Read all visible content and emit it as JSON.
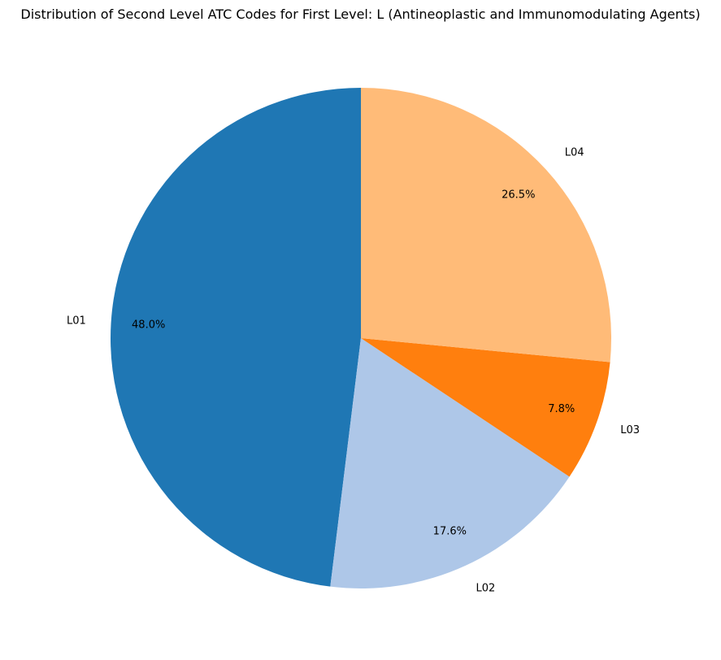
{
  "chart_data": {
    "type": "pie",
    "title": "Distribution of Second Level ATC Codes for First Level: L (Antineoplastic and Immunomodulating Agents)",
    "labels": [
      "L01",
      "L02",
      "L03",
      "L04"
    ],
    "values": [
      48.0,
      17.6,
      7.8,
      26.5
    ],
    "value_labels": [
      "48.0%",
      "17.6%",
      "7.8%",
      "26.5%"
    ],
    "colors": [
      "#1f77b4",
      "#aec7e8",
      "#ff7f0e",
      "#ffbb78"
    ],
    "start_angle_deg": 90,
    "direction": "counterclockwise"
  }
}
